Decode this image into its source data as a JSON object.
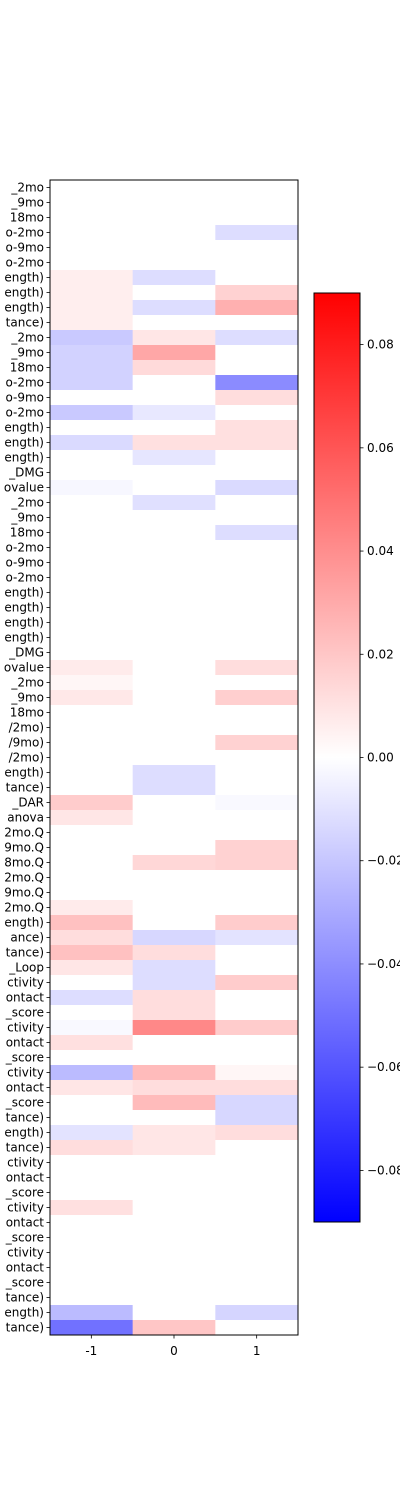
{
  "chart_data": {
    "type": "heatmap",
    "title": "",
    "xlabel": "",
    "ylabel": "",
    "colormap": "bwr",
    "color_low": "#0000ff",
    "color_mid": "#ffffff",
    "color_high": "#ff0000",
    "vmin": -0.09,
    "vmax": 0.09,
    "x_categories": [
      "-1",
      "0",
      "1"
    ],
    "y_categories": [
      "_2mo",
      "_9mo",
      "18mo",
      "o-2mo",
      "o-9mo",
      "o-2mo",
      "ength)",
      "ength)",
      "ength)",
      "tance)",
      "_2mo",
      "_9mo",
      "18mo",
      "o-2mo",
      "o-9mo",
      "o-2mo",
      "ength)",
      "ength)",
      "ength)",
      "_DMG",
      "ovalue",
      "_2mo",
      "_9mo",
      "18mo",
      "o-2mo",
      "o-9mo",
      "o-2mo",
      "ength)",
      "ength)",
      "ength)",
      "ength)",
      "_DMG",
      "ovalue",
      "_2mo",
      "_9mo",
      "18mo",
      "/2mo)",
      "/9mo)",
      "/2mo)",
      "ength)",
      "tance)",
      "_DAR",
      "anova",
      "2mo.Q",
      "9mo.Q",
      "8mo.Q",
      "2mo.Q",
      "9mo.Q",
      "2mo.Q",
      "ength)",
      "ance)",
      "tance)",
      "_Loop",
      "ctivity",
      "ontact",
      "_score",
      "ctivity",
      "ontact",
      "_score",
      "ctivity",
      "ontact",
      "_score",
      "tance)",
      "ength)",
      "tance)",
      "ctivity",
      "ontact",
      "_score",
      "ctivity",
      "ontact",
      "_score",
      "ctivity",
      "ontact",
      "_score",
      "tance)",
      "ength)",
      "tance)"
    ],
    "values": [
      [
        0,
        0,
        0
      ],
      [
        0,
        0,
        0
      ],
      [
        0,
        0,
        0
      ],
      [
        0,
        0,
        -0.012
      ],
      [
        0,
        0,
        0
      ],
      [
        0,
        0,
        0
      ],
      [
        0.006,
        -0.012,
        0
      ],
      [
        0.006,
        0,
        0.016
      ],
      [
        0.006,
        -0.012,
        0.028
      ],
      [
        0.006,
        0,
        0
      ],
      [
        -0.019,
        0.009,
        -0.012
      ],
      [
        -0.016,
        0.031,
        0
      ],
      [
        -0.016,
        0.013,
        0
      ],
      [
        -0.016,
        0,
        -0.041
      ],
      [
        0,
        0,
        0.012
      ],
      [
        -0.019,
        -0.008,
        0
      ],
      [
        0,
        0,
        0.011
      ],
      [
        -0.013,
        0.011,
        0.011
      ],
      [
        0,
        -0.009,
        0
      ],
      [
        0,
        0,
        0
      ],
      [
        -0.003,
        0,
        -0.013
      ],
      [
        0,
        -0.011,
        0
      ],
      [
        0,
        0,
        0
      ],
      [
        0,
        0,
        -0.012
      ],
      [
        0,
        0,
        0
      ],
      [
        0,
        0,
        0
      ],
      [
        0,
        0,
        0
      ],
      [
        0,
        0,
        0
      ],
      [
        0,
        0,
        0
      ],
      [
        0,
        0,
        0
      ],
      [
        0,
        0,
        0
      ],
      [
        0,
        0,
        0
      ],
      [
        0.007,
        0,
        0.012
      ],
      [
        0.003,
        0,
        0
      ],
      [
        0.008,
        0,
        0.017
      ],
      [
        0,
        0,
        0
      ],
      [
        0,
        0,
        0
      ],
      [
        0,
        0,
        0.016
      ],
      [
        0,
        0,
        0
      ],
      [
        0,
        -0.012,
        0
      ],
      [
        0,
        -0.012,
        0
      ],
      [
        0.018,
        0,
        -0.002
      ],
      [
        0.009,
        0,
        0
      ],
      [
        0,
        0,
        0
      ],
      [
        0,
        0,
        0.016
      ],
      [
        0,
        0.014,
        0.016
      ],
      [
        0,
        0,
        0
      ],
      [
        0,
        0,
        0
      ],
      [
        0.007,
        0,
        0
      ],
      [
        0.022,
        0,
        0.018
      ],
      [
        0.012,
        -0.014,
        -0.01
      ],
      [
        0.022,
        0.012,
        0
      ],
      [
        0.009,
        -0.012,
        0
      ],
      [
        0,
        -0.012,
        0.018
      ],
      [
        -0.012,
        0.012,
        0
      ],
      [
        0,
        0.012,
        0
      ],
      [
        -0.002,
        0.042,
        0.018
      ],
      [
        0.011,
        0,
        0
      ],
      [
        0,
        0,
        0
      ],
      [
        -0.024,
        0.024,
        0.003
      ],
      [
        0.009,
        0.012,
        0.012
      ],
      [
        0,
        0.024,
        -0.014
      ],
      [
        0,
        0,
        -0.014
      ],
      [
        -0.01,
        0.009,
        0.012
      ],
      [
        0.012,
        0.009,
        0
      ],
      [
        0,
        0,
        0
      ],
      [
        0,
        0,
        0
      ],
      [
        0,
        0,
        0
      ],
      [
        0.011,
        0,
        0
      ],
      [
        0,
        0,
        0
      ],
      [
        0,
        0,
        0
      ],
      [
        0,
        0,
        0
      ],
      [
        0,
        0,
        0
      ],
      [
        0,
        0,
        0
      ],
      [
        0,
        0,
        0
      ],
      [
        -0.024,
        0,
        -0.015
      ],
      [
        -0.05,
        0.02,
        0
      ]
    ],
    "colorbar_ticks": [
      0.08,
      0.06,
      0.04,
      0.02,
      0.0,
      -0.02,
      -0.04,
      -0.06,
      -0.08
    ],
    "colorbar_tick_labels": [
      "0.08",
      "0.06",
      "0.04",
      "0.02",
      "0.00",
      "−0.02",
      "−0.04",
      "−0.06",
      "−0.08"
    ],
    "grid": false,
    "legend": "colorbar-right"
  }
}
